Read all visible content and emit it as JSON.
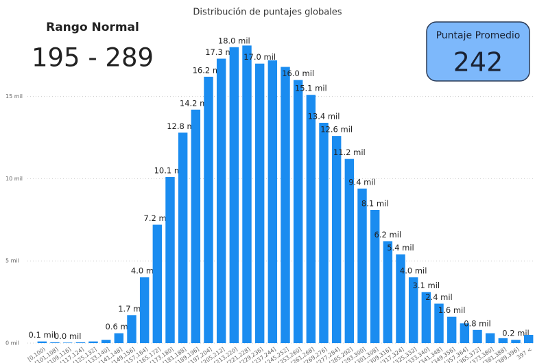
{
  "chart_data": {
    "type": "bar",
    "title": "Distribución de puntajes globales",
    "categories": [
      "[0,100)",
      "[101,108]",
      "[109,116]",
      "[117,124]",
      "[125,132]",
      "[133,140]",
      "[141,148]",
      "[149,156]",
      "[157,164]",
      "[165,172]",
      "[173,180]",
      "[181,188]",
      "[189,196]",
      "[197,204]",
      "[205,212]",
      "[213,220]",
      "[221,228]",
      "[229,236]",
      "[237,244]",
      "[245,252]",
      "[253,260]",
      "[261,268]",
      "[269,276]",
      "[277,284]",
      "[285,292]",
      "[293,300]",
      "[301,308]",
      "[309,316]",
      "[317,324]",
      "[325,332]",
      "[333,340]",
      "[341,348]",
      "[349,356]",
      "[357,364]",
      "[365,372]",
      "[373,380]",
      "[381,388]",
      "[389,396]",
      "397 <"
    ],
    "values": [
      0.1,
      0.05,
      0.03,
      0.05,
      0.1,
      0.2,
      0.6,
      1.7,
      4.0,
      7.2,
      10.1,
      12.8,
      14.2,
      16.2,
      17.3,
      18.0,
      18.1,
      17.0,
      17.2,
      16.8,
      16.0,
      15.1,
      13.4,
      12.6,
      11.2,
      9.4,
      8.1,
      6.2,
      5.4,
      4.0,
      3.1,
      2.4,
      1.6,
      1.2,
      0.8,
      0.6,
      0.3,
      0.2,
      0.5
    ],
    "value_labels": [
      "0.1 mil",
      null,
      "0.0 mil",
      null,
      null,
      null,
      "0.6 mil",
      "1.7 mil",
      "4.0 mil",
      "7.2 mil",
      "10.1 mil",
      "12.8 mil",
      "14.2 mil",
      "16.2 mil",
      "17.3 mil",
      "18.0 mil",
      null,
      "17.0 mil",
      null,
      null,
      "16.0 mil",
      "15.1 mil",
      "13.4 mil",
      "12.6 mil",
      "11.2 mil",
      "9.4 mil",
      "8.1 mil",
      "6.2 mil",
      "5.4 mil",
      "4.0 mil",
      "3.1 mil",
      "2.4 mil",
      "1.6 mil",
      null,
      "0.8 mil",
      null,
      null,
      "0.2 mil",
      null
    ],
    "color": "#1a8cf0",
    "ylim": [
      0,
      19.2
    ],
    "yticks": [
      {
        "value": 0,
        "label": "0 mil"
      },
      {
        "value": 5,
        "label": "5 mil"
      },
      {
        "value": 10,
        "label": "10 mil"
      },
      {
        "value": 15,
        "label": "15 mil"
      }
    ],
    "grid": true
  },
  "cards": [
    {
      "title": "Rango Normal",
      "value": "195 - 289"
    },
    {
      "title": "Puntaje Promedio",
      "value": "242"
    }
  ]
}
